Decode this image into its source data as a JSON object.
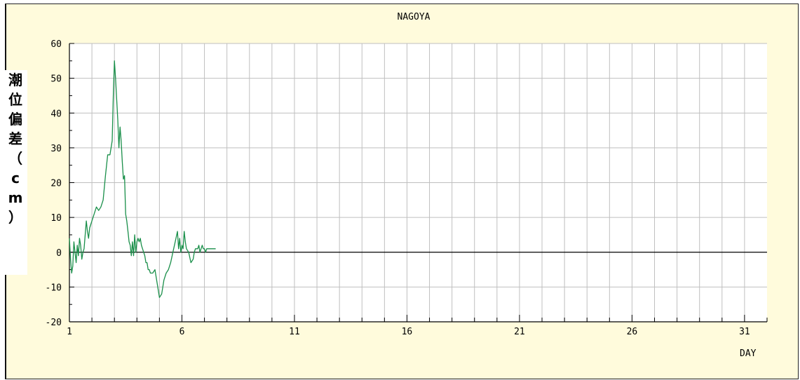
{
  "chart_data": {
    "type": "line",
    "title": "NAGOYA",
    "xlabel": "DAY",
    "ylabel_chars": [
      "潮",
      "位",
      "偏",
      "差",
      "（",
      "c",
      "m",
      "）"
    ],
    "xlim": [
      1,
      32
    ],
    "ylim": [
      -20,
      60
    ],
    "xticks": [
      1,
      6,
      11,
      16,
      21,
      26,
      31
    ],
    "yticks": [
      -20,
      -10,
      0,
      10,
      20,
      30,
      40,
      50,
      60
    ],
    "grid": true,
    "colors": {
      "line": "#1a8f4a",
      "grid": "#bfbfbf",
      "zero_line": "#000000"
    },
    "series": [
      {
        "x": [
          1.0,
          1.05,
          1.1,
          1.15,
          1.2,
          1.25,
          1.3,
          1.35,
          1.4,
          1.45,
          1.5,
          1.55,
          1.6,
          1.65,
          1.7,
          1.75,
          1.8,
          1.85,
          1.9,
          1.95,
          2.0,
          2.05,
          2.1,
          2.2,
          2.3,
          2.4,
          2.5,
          2.6,
          2.7,
          2.8,
          2.9,
          2.95,
          3.0,
          3.05,
          3.1,
          3.15,
          3.2,
          3.25,
          3.3,
          3.35,
          3.4,
          3.45,
          3.5,
          3.55,
          3.6,
          3.65,
          3.7,
          3.75,
          3.8,
          3.85,
          3.9,
          3.95,
          4.0,
          4.05,
          4.1,
          4.15,
          4.2,
          4.25,
          4.3,
          4.35,
          4.4,
          4.45,
          4.5,
          4.55,
          4.6,
          4.7,
          4.8,
          4.9,
          5.0,
          5.1,
          5.2,
          5.3,
          5.4,
          5.5,
          5.6,
          5.7,
          5.8,
          5.85,
          5.9,
          5.95,
          6.0,
          6.05,
          6.1,
          6.15,
          6.2,
          6.3,
          6.4,
          6.5,
          6.55,
          6.6,
          6.65,
          6.7,
          6.75,
          6.8,
          6.85,
          6.9,
          6.95,
          7.0,
          7.05,
          7.1,
          7.15,
          7.2,
          7.25,
          7.3,
          7.35,
          7.4,
          7.45,
          7.5
        ],
        "y": [
          4,
          -2,
          -6,
          -4,
          3,
          0,
          -3,
          2,
          -1,
          4,
          2,
          -2,
          0,
          1,
          5,
          9,
          6,
          4,
          7,
          8,
          9,
          10,
          11,
          13,
          12,
          13,
          15,
          22,
          28,
          28,
          32,
          45,
          55,
          50,
          44,
          38,
          30,
          36,
          32,
          26,
          21,
          22,
          11,
          9,
          6,
          3,
          2,
          -1,
          3,
          -1,
          5,
          0,
          3,
          4,
          3,
          4,
          2,
          1,
          0,
          -1,
          -3,
          -3,
          -5,
          -5,
          -6,
          -6,
          -5,
          -9,
          -13,
          -12,
          -8,
          -6,
          -5,
          -3,
          0,
          3,
          6,
          1,
          4,
          0,
          2,
          1,
          6,
          3,
          1,
          0,
          -3,
          -2,
          0,
          1,
          1,
          1,
          2,
          0,
          1,
          2,
          1,
          1,
          0,
          1,
          1,
          1,
          1,
          1,
          1,
          1,
          1,
          1
        ]
      }
    ]
  }
}
